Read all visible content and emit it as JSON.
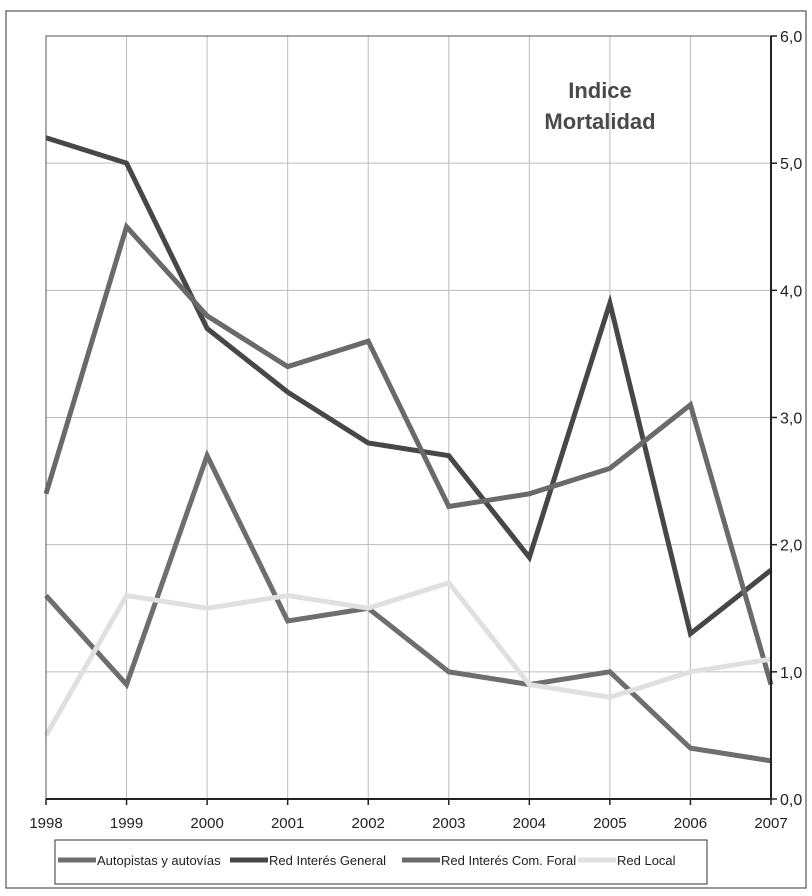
{
  "chart_data": {
    "type": "line",
    "title": "Indice\nMortalidad",
    "x": [
      "1998",
      "1999",
      "2000",
      "2001",
      "2002",
      "2003",
      "2004",
      "2005",
      "2006",
      "2007"
    ],
    "y_ticks": [
      "0,0",
      "1,0",
      "2,0",
      "3,0",
      "4,0",
      "5,0",
      "6,0"
    ],
    "ylim": [
      0,
      6
    ],
    "y_axis_side": "right",
    "grid": true,
    "legend_position": "bottom",
    "series": [
      {
        "name": "Autopistas y autovías",
        "color": "#6e6e6e",
        "values": [
          1.6,
          0.9,
          2.7,
          1.4,
          1.5,
          1.0,
          0.9,
          1.0,
          0.4,
          0.3
        ]
      },
      {
        "name": "Red Interés General",
        "color": "#474747",
        "values": [
          5.2,
          5.0,
          3.7,
          3.2,
          2.8,
          2.7,
          1.9,
          3.9,
          1.3,
          1.8
        ]
      },
      {
        "name": "Red Interés Com. Foral",
        "color": "#6a6a6a",
        "values": [
          2.4,
          4.5,
          3.8,
          3.4,
          3.6,
          2.3,
          2.4,
          2.6,
          3.1,
          0.9
        ]
      },
      {
        "name": "Red Local",
        "color": "#e0e0e0",
        "values": [
          0.5,
          1.6,
          1.5,
          1.6,
          1.5,
          1.7,
          0.9,
          0.8,
          1.0,
          1.1
        ]
      }
    ]
  }
}
